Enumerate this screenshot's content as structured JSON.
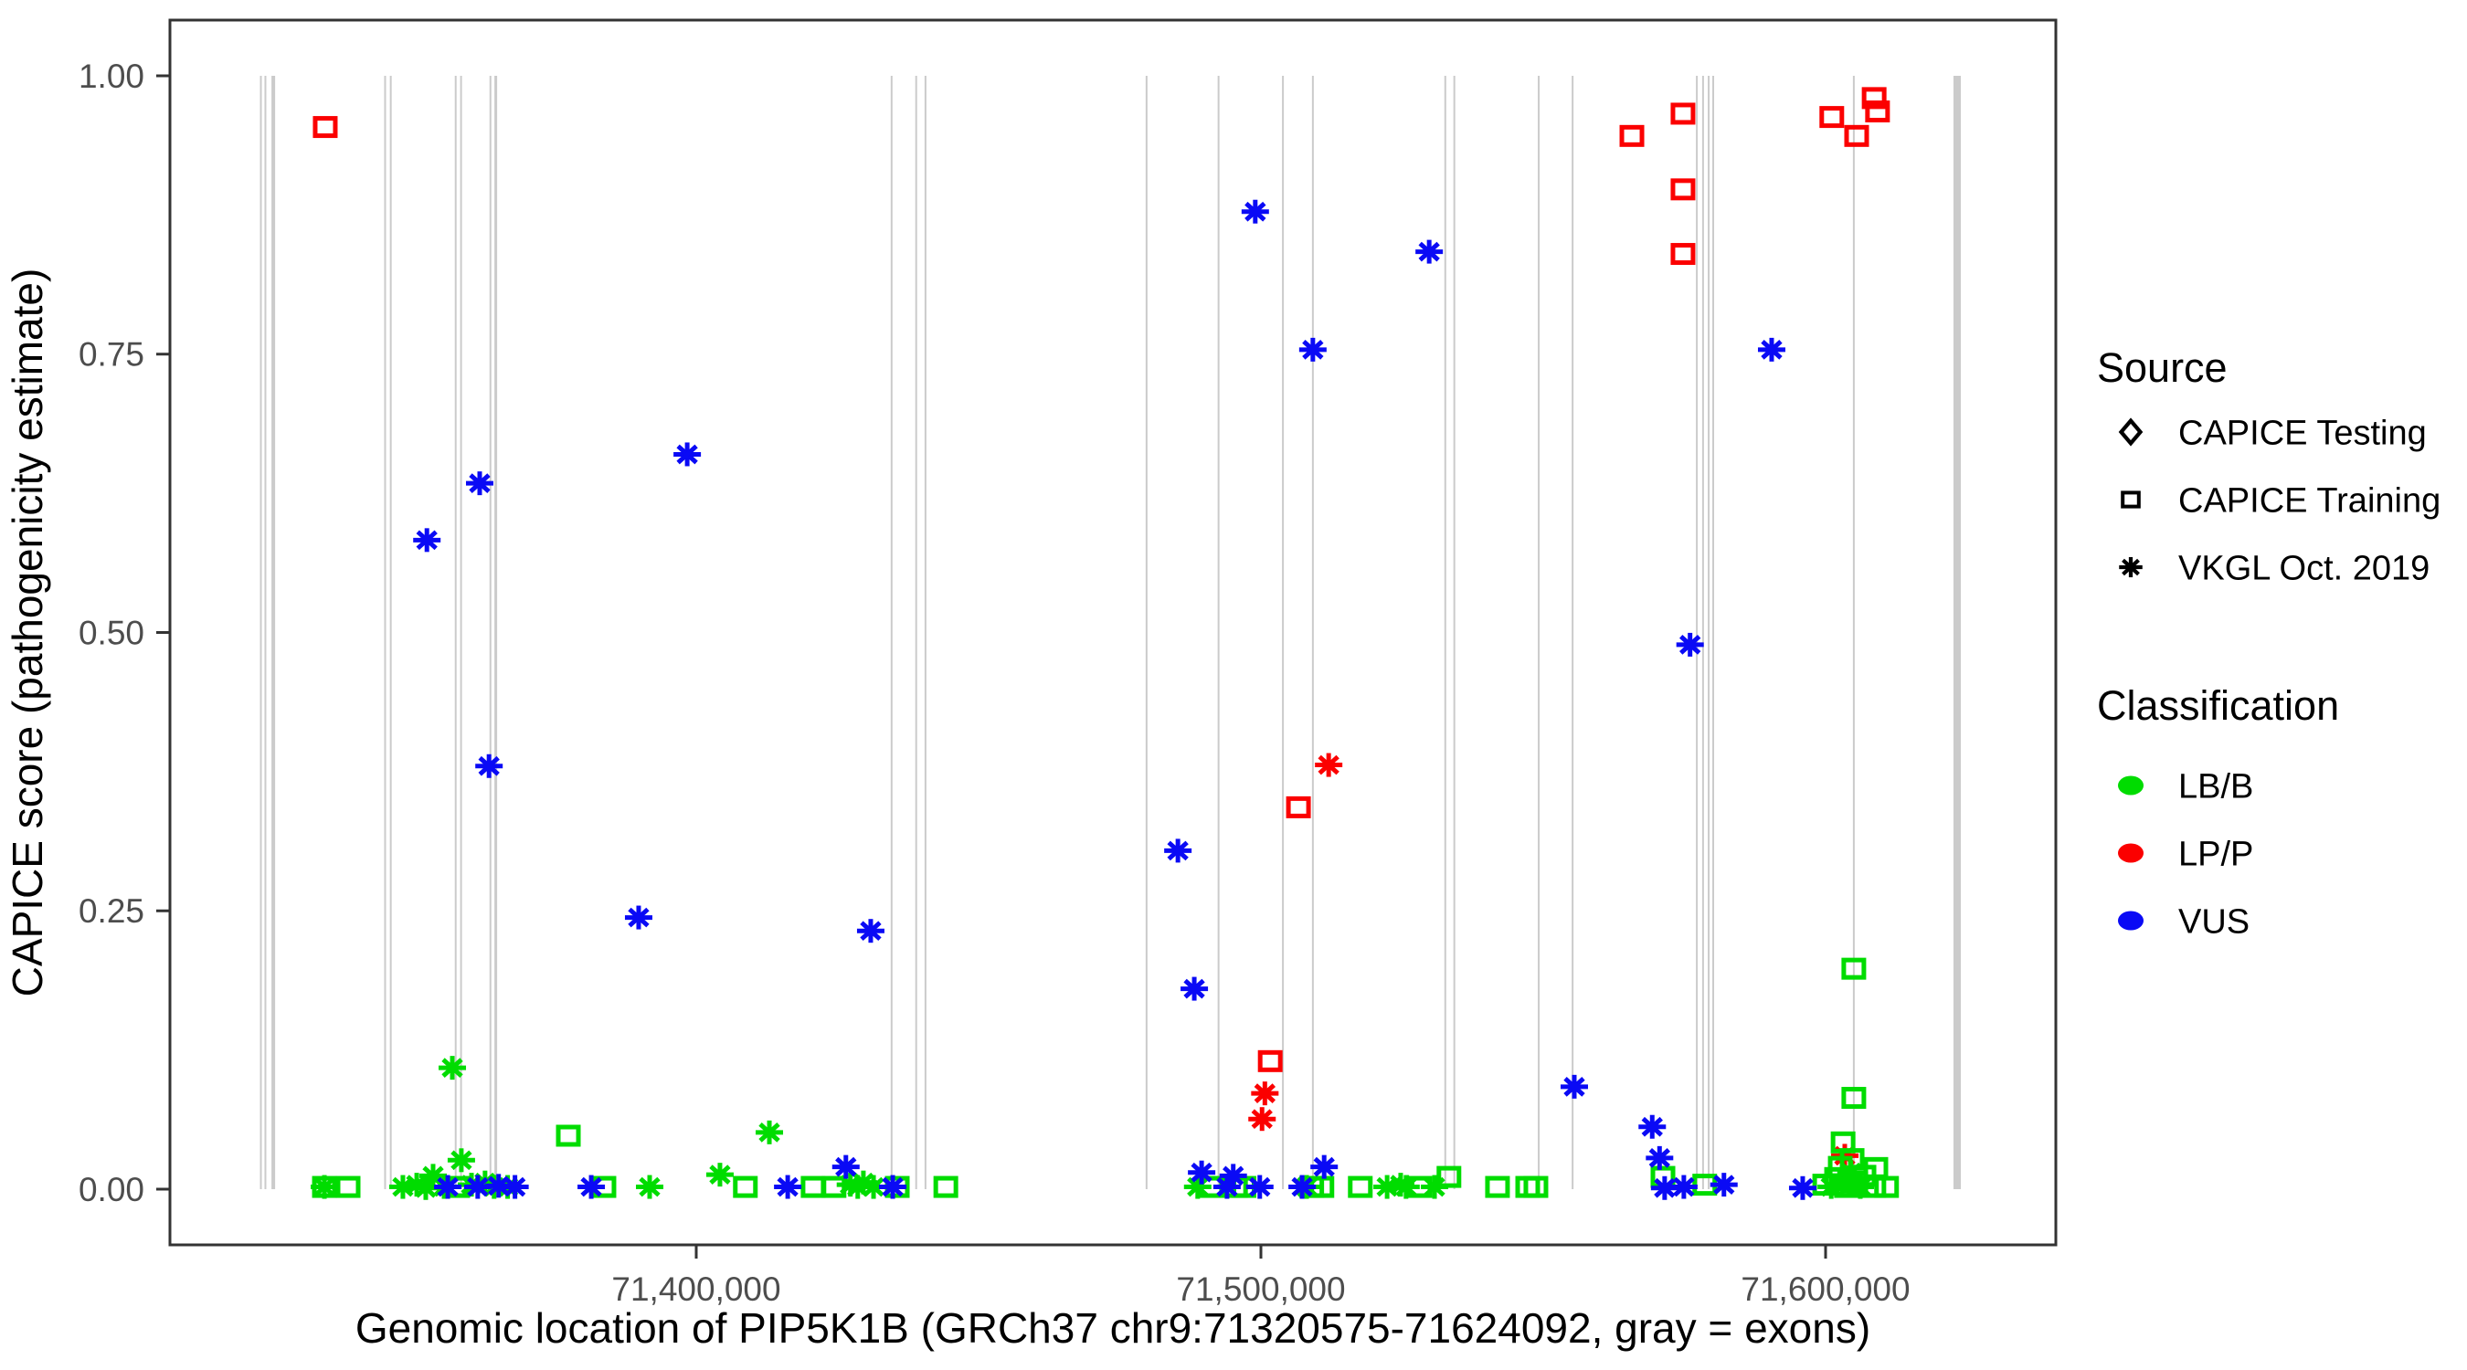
{
  "chart_data": {
    "type": "scatter",
    "title": "",
    "x_axis": {
      "label": "Genomic location of PIP5K1B (GRCh37 chr9:71320575-71624092, gray = exons)",
      "ticks": [
        {
          "value": 71400000,
          "label": "71,400,000"
        },
        {
          "value": 71500000,
          "label": "71,500,000"
        },
        {
          "value": 71600000,
          "label": "71,600,000"
        }
      ],
      "range": [
        71306000,
        71641000
      ]
    },
    "y_axis": {
      "label": "CAPICE score (pathogenicity estimate)",
      "ticks": [
        {
          "value": 0.0,
          "label": "0.00"
        },
        {
          "value": 0.25,
          "label": "0.25"
        },
        {
          "value": 0.5,
          "label": "0.50"
        },
        {
          "value": 0.75,
          "label": "0.75"
        },
        {
          "value": 1.0,
          "label": "1.00"
        }
      ],
      "range": [
        0,
        1
      ]
    },
    "grid": "off",
    "legend_position": "right",
    "legend": {
      "source": {
        "title": "Source",
        "items": [
          {
            "label": "CAPICE Testing",
            "shape": "diamond"
          },
          {
            "label": "CAPICE Training",
            "shape": "square"
          },
          {
            "label": "VKGL Oct. 2019",
            "shape": "asterisk"
          }
        ]
      },
      "classification": {
        "title": "Classification",
        "items": [
          {
            "label": "LB/B",
            "color_key": "LB/B"
          },
          {
            "label": "LP/P",
            "color_key": "LP/P"
          },
          {
            "label": "VUS",
            "color_key": "VUS"
          }
        ]
      }
    },
    "colors": {
      "LB/B": "#00DC00",
      "LP/P": "#FB0000",
      "VUS": "#0A0AF5",
      "legend_symbol": "#000000",
      "exon": "#CBCBCB",
      "axis": "#333333",
      "tick_label": "#4D4D4D",
      "title_text": "#000000"
    },
    "exons_note": "gray vertical lines = exons, drawn from score 0 to 1",
    "exons": [
      {
        "bp": 71322900,
        "w": 2
      },
      {
        "bp": 71323700,
        "w": 2
      },
      {
        "bp": 71325100,
        "w": 4
      },
      {
        "bp": 71344900,
        "w": 2
      },
      {
        "bp": 71345900,
        "w": 2
      },
      {
        "bp": 71357400,
        "w": 2
      },
      {
        "bp": 71358350,
        "w": 2
      },
      {
        "bp": 71363550,
        "w": 2
      },
      {
        "bp": 71364500,
        "w": 3
      },
      {
        "bp": 71434600,
        "w": 2
      },
      {
        "bp": 71438950,
        "w": 2
      },
      {
        "bp": 71440600,
        "w": 2
      },
      {
        "bp": 71479750,
        "w": 2
      },
      {
        "bp": 71492500,
        "w": 2
      },
      {
        "bp": 71503900,
        "w": 2
      },
      {
        "bp": 71509200,
        "w": 2
      },
      {
        "bp": 71532650,
        "w": 2
      },
      {
        "bp": 71534250,
        "w": 2
      },
      {
        "bp": 71549200,
        "w": 2
      },
      {
        "bp": 71555200,
        "w": 2
      },
      {
        "bp": 71577200,
        "w": 2
      },
      {
        "bp": 71578300,
        "w": 2
      },
      {
        "bp": 71579300,
        "w": 2
      },
      {
        "bp": 71580100,
        "w": 2
      },
      {
        "bp": 71605000,
        "w": 2
      },
      {
        "bp": 71623300,
        "w": 8
      }
    ],
    "series": [
      {
        "key": "capice-testing",
        "source": "CAPICE Testing",
        "classification": null,
        "shape": "diamond",
        "color_key": "legend_symbol",
        "points": []
      },
      {
        "key": "capice-training-lpp",
        "source": "CAPICE Training",
        "classification": "LP/P",
        "shape": "square",
        "color_key": "LP/P",
        "points": [
          [
            71334300,
            0.954
          ],
          [
            71506650,
            0.343
          ],
          [
            71501650,
            0.115
          ],
          [
            71565700,
            0.946
          ],
          [
            71574750,
            0.966
          ],
          [
            71574750,
            0.898
          ],
          [
            71574750,
            0.84
          ],
          [
            71601100,
            0.963
          ],
          [
            71605500,
            0.946
          ],
          [
            71608600,
            0.98
          ],
          [
            71609200,
            0.968
          ]
        ]
      },
      {
        "key": "vkgl-lpp",
        "source": "VKGL Oct. 2019",
        "classification": "LP/P",
        "shape": "asterisk",
        "color_key": "LP/P",
        "points": [
          [
            71512000,
            0.381
          ],
          [
            71500700,
            0.086
          ],
          [
            71500200,
            0.063
          ],
          [
            71603400,
            0.03
          ]
        ]
      },
      {
        "key": "capice-training-lbb",
        "source": "CAPICE Training",
        "classification": "LB/B",
        "shape": "square",
        "color_key": "LB/B",
        "points": [
          [
            71377350,
            0.048
          ],
          [
            71605000,
            0.198
          ],
          [
            71605000,
            0.082
          ],
          [
            71334150,
            0.002
          ],
          [
            71338350,
            0.002
          ],
          [
            71357750,
            0.002
          ],
          [
            71383650,
            0.002
          ],
          [
            71408700,
            0.002
          ],
          [
            71420700,
            0.002
          ],
          [
            71424400,
            0.002
          ],
          [
            71435600,
            0.002
          ],
          [
            71444200,
            0.002
          ],
          [
            71491250,
            0.002
          ],
          [
            71495500,
            0.002
          ],
          [
            71497000,
            0.002
          ],
          [
            71509000,
            0.002
          ],
          [
            71510800,
            0.002
          ],
          [
            71517600,
            0.002
          ],
          [
            71528150,
            0.002
          ],
          [
            71533300,
            0.011
          ],
          [
            71541900,
            0.002
          ],
          [
            71547250,
            0.002
          ],
          [
            71548700,
            0.002
          ],
          [
            71571200,
            0.011
          ],
          [
            71578600,
            0.004
          ],
          [
            71599850,
            0.004
          ],
          [
            71601950,
            0.01
          ],
          [
            71603700,
            0.002
          ],
          [
            71605350,
            0.006
          ],
          [
            71606800,
            0.012
          ],
          [
            71602600,
            0.02
          ],
          [
            71603100,
            0.042
          ],
          [
            71604700,
            0.027
          ],
          [
            71608900,
            0.019
          ],
          [
            71608550,
            0.002
          ],
          [
            71610800,
            0.002
          ]
        ]
      },
      {
        "key": "vkgl-lbb",
        "source": "VKGL Oct. 2019",
        "classification": "LB/B",
        "shape": "asterisk",
        "color_key": "LB/B",
        "points": [
          [
            71356800,
            0.109
          ],
          [
            71412950,
            0.051
          ],
          [
            71334150,
            0.002
          ],
          [
            71348050,
            0.002
          ],
          [
            71350500,
            0.004
          ],
          [
            71352100,
            0.001
          ],
          [
            71353400,
            0.012
          ],
          [
            71355350,
            0.002
          ],
          [
            71358400,
            0.026
          ],
          [
            71360200,
            0.004
          ],
          [
            71362600,
            0.006
          ],
          [
            71364200,
            0.002
          ],
          [
            71366600,
            0.002
          ],
          [
            71391750,
            0.002
          ],
          [
            71404200,
            0.013
          ],
          [
            71427300,
            0.004
          ],
          [
            71428600,
            0.002
          ],
          [
            71429600,
            0.006
          ],
          [
            71431400,
            0.002
          ],
          [
            71488800,
            0.002
          ],
          [
            71508100,
            0.002
          ],
          [
            71522350,
            0.002
          ],
          [
            71524750,
            0.004
          ],
          [
            71525700,
            0.002
          ],
          [
            71530750,
            0.002
          ],
          [
            71601000,
            0.002
          ],
          [
            71602900,
            0.003
          ],
          [
            71604500,
            0.015
          ],
          [
            71606150,
            0.002
          ]
        ]
      },
      {
        "key": "vkgl-vus",
        "source": "VKGL Oct. 2019",
        "classification": "VUS",
        "shape": "asterisk",
        "color_key": "VUS",
        "points": [
          [
            71352300,
            0.583
          ],
          [
            71361650,
            0.634
          ],
          [
            71363300,
            0.38
          ],
          [
            71398400,
            0.66
          ],
          [
            71389800,
            0.244
          ],
          [
            71430900,
            0.232
          ],
          [
            71509200,
            0.754
          ],
          [
            71499000,
            0.878
          ],
          [
            71529800,
            0.842
          ],
          [
            71485300,
            0.304
          ],
          [
            71488200,
            0.18
          ],
          [
            71555500,
            0.092
          ],
          [
            71576000,
            0.489
          ],
          [
            71569300,
            0.056
          ],
          [
            71570600,
            0.028
          ],
          [
            71590450,
            0.754
          ],
          [
            71356000,
            0.002
          ],
          [
            71361300,
            0.002
          ],
          [
            71365000,
            0.003
          ],
          [
            71367900,
            0.002
          ],
          [
            71381400,
            0.002
          ],
          [
            71416200,
            0.002
          ],
          [
            71426500,
            0.02
          ],
          [
            71434800,
            0.002
          ],
          [
            71489500,
            0.015
          ],
          [
            71494000,
            0.002
          ],
          [
            71495100,
            0.012
          ],
          [
            71499800,
            0.002
          ],
          [
            71507300,
            0.002
          ],
          [
            71511200,
            0.02
          ],
          [
            71571500,
            0.001
          ],
          [
            71574900,
            0.002
          ],
          [
            71582000,
            0.004
          ],
          [
            71595950,
            0.001
          ]
        ]
      }
    ]
  }
}
